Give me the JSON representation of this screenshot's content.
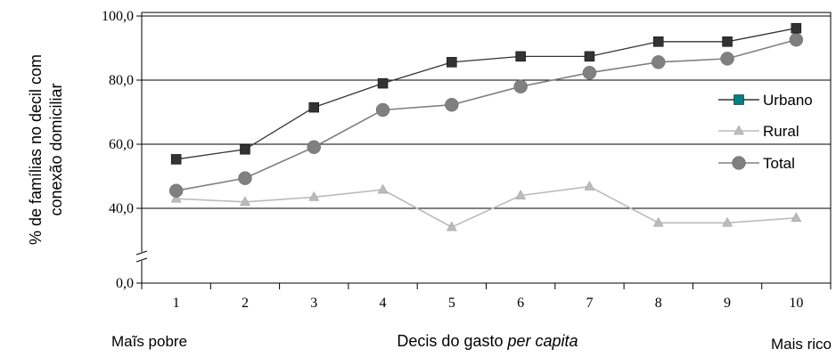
{
  "chart_data": {
    "type": "line",
    "x": [
      "1",
      "2",
      "3",
      "4",
      "5",
      "6",
      "7",
      "8",
      "9",
      "10"
    ],
    "series": [
      {
        "name": "Urbano",
        "values": [
          55.3,
          58.4,
          71.5,
          79.0,
          85.6,
          87.4,
          87.4,
          92.0,
          92.0,
          96.2
        ],
        "color": "#333333",
        "marker": "square"
      },
      {
        "name": "Rural",
        "values": [
          43.0,
          42.0,
          43.5,
          45.8,
          31.2,
          44.0,
          46.8,
          33.2,
          33.2,
          35.5
        ],
        "color": "#bbbbbb",
        "marker": "triangle"
      },
      {
        "name": "Total",
        "values": [
          45.5,
          49.4,
          59.1,
          70.7,
          72.3,
          78.0,
          82.3,
          85.6,
          86.7,
          92.6
        ],
        "color": "#808080",
        "marker": "circle"
      }
    ],
    "legend_marker_color_urbano": "#008080",
    "ylabel_lines": [
      "% de famílias no decil com",
      "conexão domiciliar"
    ],
    "xlabel_prefix": "Decis do gasto ",
    "xlabel_italic": "per capita",
    "left_label": "Maĩs pobre",
    "right_label": "Mais rico",
    "y_ticks": [
      "0,0",
      "40,0",
      "60,0",
      "80,0",
      "100,0"
    ],
    "ylim_visible": [
      0,
      100
    ],
    "axis_break": true,
    "grid": "horizontal",
    "legend_position": "right"
  }
}
